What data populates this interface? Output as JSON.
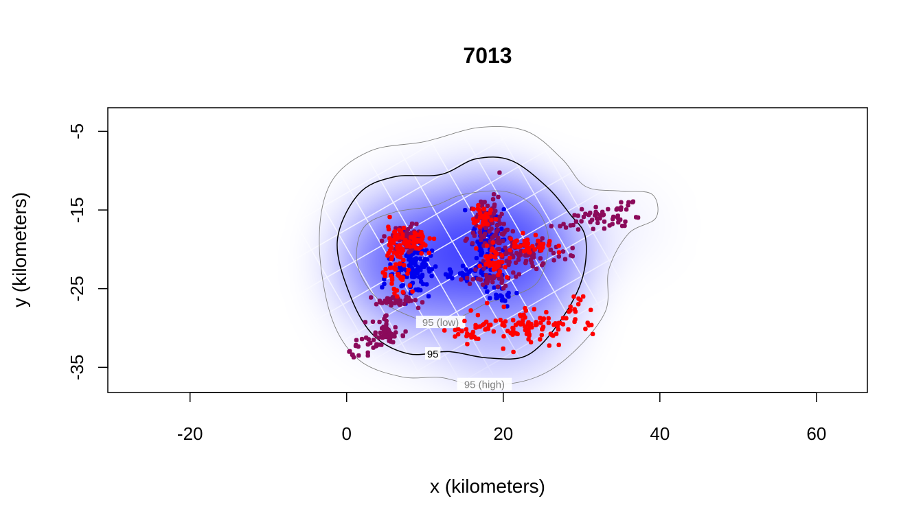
{
  "chart_data": {
    "type": "scatter",
    "title": "7013",
    "xlabel": "x (kilometers)",
    "ylabel": "y (kilometers)",
    "xlim": [
      -30.5,
      66.5
    ],
    "ylim": [
      -38.2,
      -2.0
    ],
    "x_ticks": [
      -20,
      0,
      20,
      40,
      60
    ],
    "y_ticks": [
      -5,
      -15,
      -25,
      -35
    ],
    "grid": false,
    "density_surface": {
      "centers": [
        {
          "x": 8.5,
          "y": -21.5,
          "weight": 1.0
        },
        {
          "x": 18.5,
          "y": -18.5,
          "weight": 0.9
        },
        {
          "x": 22.5,
          "y": -21.0,
          "weight": 0.6
        },
        {
          "x": 20.0,
          "y": -29.5,
          "weight": 0.35
        }
      ],
      "colors": [
        "#ffffff",
        "#0000ff"
      ]
    },
    "contours": [
      {
        "label": "95 (low)",
        "color": "#808080",
        "points": [
          [
            1.3,
            -21.5
          ],
          [
            2.2,
            -17.2
          ],
          [
            6.0,
            -15.3
          ],
          [
            11.0,
            -14.5
          ],
          [
            15.0,
            -13.0
          ],
          [
            20.5,
            -12.7
          ],
          [
            24.3,
            -15.0
          ],
          [
            25.8,
            -19.0
          ],
          [
            24.5,
            -24.0
          ],
          [
            21.0,
            -26.0
          ],
          [
            18.0,
            -26.8
          ],
          [
            14.5,
            -28.6
          ],
          [
            11.0,
            -29.3
          ],
          [
            6.5,
            -27.8
          ],
          [
            3.2,
            -25.5
          ],
          [
            1.3,
            -21.5
          ]
        ]
      },
      {
        "label": "95",
        "color": "#000000",
        "points": [
          [
            -1.2,
            -19.0
          ],
          [
            1.5,
            -13.0
          ],
          [
            6.0,
            -10.8
          ],
          [
            12.0,
            -10.5
          ],
          [
            16.5,
            -8.5
          ],
          [
            21.0,
            -8.7
          ],
          [
            25.5,
            -12.0
          ],
          [
            28.5,
            -15.5
          ],
          [
            30.5,
            -18.5
          ],
          [
            30.0,
            -24.0
          ],
          [
            27.0,
            -29.5
          ],
          [
            23.0,
            -33.5
          ],
          [
            18.0,
            -33.8
          ],
          [
            13.0,
            -33.0
          ],
          [
            8.0,
            -33.3
          ],
          [
            3.5,
            -31.0
          ],
          [
            0.5,
            -26.0
          ],
          [
            -1.2,
            -19.0
          ]
        ]
      },
      {
        "label": "95 (high)",
        "color": "#808080",
        "points": [
          [
            -3.5,
            -19.0
          ],
          [
            -2.0,
            -11.5
          ],
          [
            3.0,
            -7.5
          ],
          [
            10.0,
            -6.3
          ],
          [
            17.0,
            -4.5
          ],
          [
            23.0,
            -5.0
          ],
          [
            27.5,
            -8.5
          ],
          [
            30.5,
            -12.0
          ],
          [
            35.0,
            -12.6
          ],
          [
            39.0,
            -13.0
          ],
          [
            39.5,
            -16.0
          ],
          [
            36.0,
            -18.0
          ],
          [
            33.5,
            -22.5
          ],
          [
            33.0,
            -28.0
          ],
          [
            28.5,
            -33.5
          ],
          [
            23.5,
            -36.5
          ],
          [
            17.0,
            -37.3
          ],
          [
            12.0,
            -36.3
          ],
          [
            7.0,
            -36.2
          ],
          [
            1.5,
            -34.0
          ],
          [
            -2.0,
            -28.5
          ],
          [
            -3.5,
            -19.0
          ]
        ]
      }
    ],
    "series": [
      {
        "color": "#0000ee",
        "clusters": [
          {
            "x": 8.5,
            "y": -22.0,
            "sx": 1.8,
            "sy": 2.2,
            "n": 130
          },
          {
            "x": 18.0,
            "y": -19.0,
            "sx": 1.4,
            "sy": 2.8,
            "n": 90
          },
          {
            "x": 15.0,
            "y": -23.0,
            "sx": 2.0,
            "sy": 0.8,
            "n": 25
          },
          {
            "x": 20.0,
            "y": -26.0,
            "sx": 1.5,
            "sy": 1.2,
            "n": 20
          }
        ]
      },
      {
        "color": "#8b0a5b",
        "clusters": [
          {
            "x": 7.5,
            "y": -18.5,
            "sx": 1.5,
            "sy": 1.0,
            "n": 90
          },
          {
            "x": 18.5,
            "y": -17.0,
            "sx": 1.8,
            "sy": 2.5,
            "n": 90
          },
          {
            "x": 23.0,
            "y": -20.5,
            "sx": 3.0,
            "sy": 1.2,
            "n": 70
          },
          {
            "x": 4.5,
            "y": -30.5,
            "sx": 2.0,
            "sy": 1.5,
            "n": 40
          },
          {
            "x": 7.0,
            "y": -26.5,
            "sx": 2.0,
            "sy": 0.6,
            "n": 40
          },
          {
            "x": 33.0,
            "y": -16.0,
            "sx": 3.0,
            "sy": 1.0,
            "n": 35
          },
          {
            "x": 19.0,
            "y": -23.5,
            "sx": 3.0,
            "sy": 1.0,
            "n": 40
          },
          {
            "x": 1.5,
            "y": -33.0,
            "sx": 1.0,
            "sy": 0.6,
            "n": 6
          }
        ]
      },
      {
        "color": "#ff0000",
        "clusters": [
          {
            "x": 6.5,
            "y": -21.0,
            "sx": 1.0,
            "sy": 3.0,
            "n": 80
          },
          {
            "x": 8.5,
            "y": -19.0,
            "sx": 1.5,
            "sy": 1.0,
            "n": 40
          },
          {
            "x": 17.5,
            "y": -16.0,
            "sx": 1.0,
            "sy": 1.2,
            "n": 30
          },
          {
            "x": 18.5,
            "y": -21.5,
            "sx": 1.2,
            "sy": 1.5,
            "n": 40
          },
          {
            "x": 23.5,
            "y": -19.5,
            "sx": 2.0,
            "sy": 0.8,
            "n": 40
          },
          {
            "x": 23.0,
            "y": -30.0,
            "sx": 3.5,
            "sy": 1.6,
            "n": 80
          },
          {
            "x": 16.0,
            "y": -30.5,
            "sx": 2.0,
            "sy": 1.0,
            "n": 30
          },
          {
            "x": 30.5,
            "y": -28.5,
            "sx": 1.0,
            "sy": 1.5,
            "n": 8
          }
        ]
      }
    ],
    "trails": [
      {
        "color": "#8b0a5b",
        "points": [
          [
            26.5,
            -17.5
          ],
          [
            29.0,
            -16.5
          ],
          [
            31.0,
            -15.5
          ],
          [
            33.5,
            -15.0
          ],
          [
            35.5,
            -14.6
          ],
          [
            37.2,
            -13.6
          ]
        ]
      },
      {
        "color": "#8b0a5b",
        "points": [
          [
            0.5,
            -33.5
          ],
          [
            2.0,
            -32.0
          ],
          [
            4.0,
            -31.5
          ],
          [
            6.5,
            -31.0
          ],
          [
            8.0,
            -30.5
          ]
        ]
      },
      {
        "color": "#ff0000",
        "points": [
          [
            26.0,
            -32.0
          ],
          [
            27.5,
            -29.5
          ],
          [
            29.0,
            -27.0
          ],
          [
            30.0,
            -26.0
          ]
        ]
      }
    ]
  }
}
